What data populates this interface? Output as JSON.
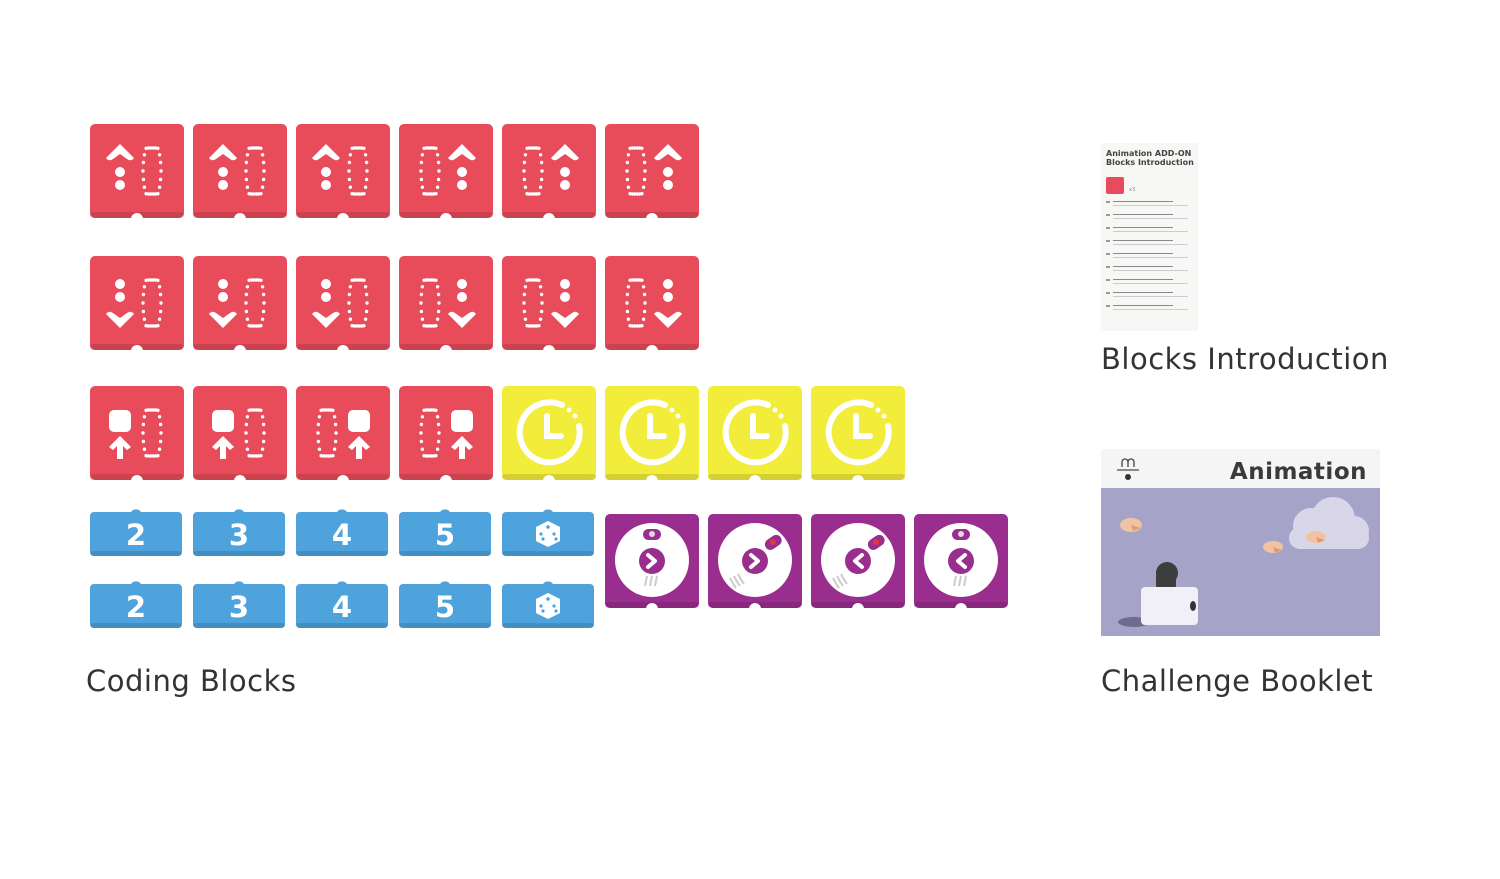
{
  "colors": {
    "red": "#e84c5a",
    "yellow": "#f2ec3a",
    "blue": "#4ea3dc",
    "purple": "#9a2e8e"
  },
  "coding_blocks": {
    "label": "Coding Blocks",
    "red_rows": [
      [
        "arrow-up-left",
        "arrow-up-left",
        "arrow-up-left",
        "arrow-up-right",
        "arrow-up-right",
        "arrow-up-right"
      ],
      [
        "arrow-down-left",
        "arrow-down-left",
        "arrow-down-left",
        "arrow-down-right",
        "arrow-down-right",
        "arrow-down-right"
      ],
      [
        "square-up-left",
        "square-up-left",
        "square-up-right",
        "square-up-right"
      ]
    ],
    "timer_count": 4,
    "number_rows": [
      [
        "2",
        "3",
        "4",
        "5",
        "dice"
      ],
      [
        "2",
        "3",
        "4",
        "5",
        "dice"
      ]
    ],
    "robot_blocks": [
      {
        "direction": "right",
        "pose": "front"
      },
      {
        "direction": "right",
        "pose": "tilted"
      },
      {
        "direction": "left",
        "pose": "tilted"
      },
      {
        "direction": "left",
        "pose": "front"
      }
    ]
  },
  "blocks_introduction": {
    "label": "Blocks Introduction",
    "doc_title_1": "Animation ADD-ON",
    "doc_title_2": "Blocks Introduction",
    "count": "x3"
  },
  "challenge_booklet": {
    "label": "Challenge Booklet",
    "cover_title": "Animation"
  }
}
